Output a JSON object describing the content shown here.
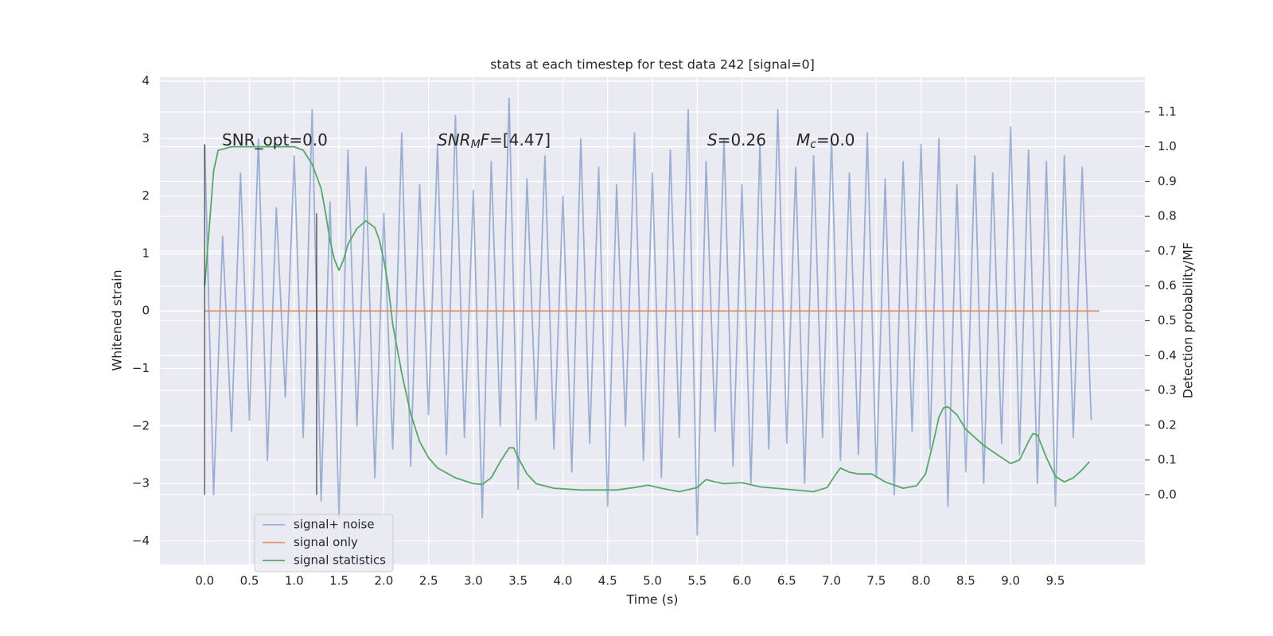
{
  "chart_data": {
    "type": "line",
    "title": "stats at each timestep for test data 242 [signal=0]",
    "xlabel": "Time (s)",
    "ylabel": "Whitened strain",
    "y2label": "Detection probability/MF",
    "xlim": [
      -0.5,
      10.5
    ],
    "ylim": [
      -4.41,
      4.07
    ],
    "y2lim": [
      -0.2,
      1.2
    ],
    "xticks": [
      {
        "value": 0,
        "label": "0.0"
      },
      0.5,
      {
        "value": 1,
        "label": "1.0"
      },
      1.5,
      {
        "value": 2,
        "label": "2.0"
      },
      2.5,
      {
        "value": 3,
        "label": "3.0"
      },
      3.5,
      {
        "value": 4,
        "label": "4.0"
      },
      4.5,
      {
        "value": 5,
        "label": "5.0"
      },
      5.5,
      {
        "value": 6,
        "label": "6.0"
      },
      6.5,
      {
        "value": 7,
        "label": "7.0"
      },
      7.5,
      {
        "value": 8,
        "label": "8.0"
      },
      8.5,
      {
        "value": 9,
        "label": "9.0"
      },
      9.5
    ],
    "yticks": [
      {
        "value": -4,
        "label": "−4"
      },
      {
        "value": -3,
        "label": "−3"
      },
      {
        "value": -2,
        "label": "−2"
      },
      {
        "value": -1,
        "label": "−1"
      },
      0,
      1,
      2,
      3,
      4
    ],
    "y2ticks": [
      {
        "value": 0,
        "label": "0.0"
      },
      0.1,
      0.2,
      0.3,
      0.4,
      0.5,
      0.6,
      0.7,
      0.8,
      0.9,
      {
        "value": 1,
        "label": "1.0"
      },
      1.1
    ],
    "grid": true,
    "legend": "lower left",
    "series": [
      {
        "name": "signal+ noise",
        "color": "#4c72b0",
        "opacity": 0.5,
        "x": [
          0,
          0.1,
          0.2,
          0.3,
          0.4,
          0.5,
          0.6,
          0.7,
          0.8,
          0.9,
          1,
          1.1,
          1.2,
          1.3,
          1.4,
          1.5,
          1.6,
          1.7,
          1.8,
          1.9,
          2,
          2.1,
          2.2,
          2.3,
          2.4,
          2.5,
          2.6,
          2.7,
          2.8,
          2.9,
          3,
          3.1,
          3.2,
          3.3,
          3.4,
          3.5,
          3.6,
          3.7,
          3.8,
          3.9,
          4,
          4.1,
          4.2,
          4.3,
          4.4,
          4.5,
          4.6,
          4.7,
          4.8,
          4.9,
          5,
          5.1,
          5.2,
          5.3,
          5.4,
          5.5,
          5.6,
          5.7,
          5.8,
          5.9,
          6,
          6.1,
          6.2,
          6.3,
          6.4,
          6.5,
          6.6,
          6.7,
          6.8,
          6.9,
          7,
          7.1,
          7.2,
          7.3,
          7.4,
          7.5,
          7.6,
          7.7,
          7.8,
          7.9,
          8,
          8.1,
          8.2,
          8.3,
          8.4,
          8.5,
          8.6,
          8.7,
          8.8,
          8.9,
          9,
          9.1,
          9.2,
          9.3,
          9.4,
          9.5,
          9.6,
          9.7,
          9.8,
          9.9
        ],
        "values": [
          2.9,
          -3.2,
          1.3,
          -2.1,
          2.4,
          -1.9,
          3.0,
          -2.6,
          1.8,
          -1.5,
          2.7,
          -2.2,
          3.5,
          -3.3,
          1.9,
          -3.6,
          2.8,
          -2.0,
          2.5,
          -2.9,
          1.7,
          -2.4,
          3.1,
          -2.7,
          2.2,
          -1.8,
          2.9,
          -2.5,
          3.4,
          -2.2,
          2.1,
          -3.6,
          2.6,
          -2.0,
          3.7,
          -3.1,
          2.3,
          -1.9,
          2.7,
          -2.4,
          2.0,
          -2.8,
          3.0,
          -2.3,
          2.5,
          -3.4,
          2.2,
          -2.0,
          3.1,
          -2.6,
          2.4,
          -2.9,
          2.8,
          -2.2,
          3.5,
          -3.9,
          2.6,
          -2.1,
          3.0,
          -2.7,
          2.2,
          -3.0,
          2.9,
          -2.4,
          3.5,
          -2.3,
          2.5,
          -3.0,
          2.7,
          -2.2,
          3.0,
          -2.6,
          2.4,
          -2.5,
          3.1,
          -2.9,
          2.3,
          -3.2,
          2.6,
          -2.1,
          2.9,
          -2.4,
          3.0,
          -3.4,
          2.2,
          -2.8,
          2.7,
          -3.0,
          2.4,
          -2.3,
          3.2,
          -2.5,
          2.8,
          -3.0,
          2.6,
          -3.4,
          2.7,
          -2.2,
          2.5,
          -1.9
        ]
      },
      {
        "name": "signal only",
        "color": "#dd8452",
        "opacity": 0.8,
        "x": [
          0,
          9.99
        ],
        "values": [
          0,
          0
        ]
      },
      {
        "name": "signal statistics",
        "color": "#55a868",
        "opacity": 1,
        "axis": "y2",
        "x": [
          0,
          0.1,
          0.15,
          0.3,
          1.0,
          1.1,
          1.2,
          1.3,
          1.35,
          1.4,
          1.45,
          1.5,
          1.55,
          1.6,
          1.7,
          1.8,
          1.9,
          1.95,
          2.0,
          2.05,
          2.1,
          2.2,
          2.3,
          2.4,
          2.5,
          2.6,
          2.8,
          3.0,
          3.1,
          3.2,
          3.3,
          3.4,
          3.45,
          3.5,
          3.6,
          3.7,
          3.9,
          4.2,
          4.6,
          4.8,
          4.95,
          5.1,
          5.3,
          5.5,
          5.6,
          5.7,
          5.8,
          6.0,
          6.2,
          6.5,
          6.8,
          6.95,
          7.05,
          7.1,
          7.2,
          7.3,
          7.45,
          7.6,
          7.8,
          7.95,
          8.05,
          8.15,
          8.2,
          8.25,
          8.3,
          8.4,
          8.5,
          8.7,
          8.9,
          9.0,
          9.1,
          9.2,
          9.25,
          9.3,
          9.4,
          9.5,
          9.6,
          9.7,
          9.8,
          9.88
        ],
        "values": [
          0.6,
          0.93,
          0.99,
          1.0,
          1.0,
          0.99,
          0.95,
          0.88,
          0.81,
          0.73,
          0.675,
          0.645,
          0.675,
          0.72,
          0.765,
          0.787,
          0.768,
          0.733,
          0.675,
          0.6,
          0.49,
          0.35,
          0.234,
          0.153,
          0.107,
          0.077,
          0.049,
          0.032,
          0.03,
          0.049,
          0.095,
          0.135,
          0.135,
          0.107,
          0.06,
          0.032,
          0.019,
          0.014,
          0.014,
          0.021,
          0.028,
          0.019,
          0.009,
          0.021,
          0.044,
          0.037,
          0.032,
          0.035,
          0.023,
          0.016,
          0.009,
          0.021,
          0.06,
          0.077,
          0.065,
          0.06,
          0.06,
          0.037,
          0.019,
          0.026,
          0.06,
          0.165,
          0.223,
          0.25,
          0.253,
          0.23,
          0.188,
          0.142,
          0.107,
          0.09,
          0.1,
          0.153,
          0.176,
          0.172,
          0.107,
          0.053,
          0.037,
          0.049,
          0.072,
          0.095
        ]
      }
    ],
    "vlines": [
      {
        "x": 0,
        "ymin": -3.2,
        "ymax": 2.9
      },
      {
        "x": 1.25,
        "ymin": -3.2,
        "ymax": 1.7
      }
    ],
    "annotations": [
      {
        "parts": [
          {
            "t": "SNR_opt=0.0"
          }
        ]
      },
      {
        "parts": [
          {
            "t": "SNR",
            "style": "italic"
          },
          {
            "t": "M",
            "style": "sub"
          },
          {
            "t": "F",
            "style": "italic"
          },
          {
            "t": "=[4.47]"
          }
        ]
      },
      {
        "parts": [
          {
            "t": "S",
            "style": "italic"
          },
          {
            "t": "=0.26"
          }
        ]
      },
      {
        "parts": [
          {
            "t": "M",
            "style": "italic"
          },
          {
            "t": "c",
            "style": "sub"
          },
          {
            "t": "=0.0"
          }
        ]
      }
    ]
  }
}
